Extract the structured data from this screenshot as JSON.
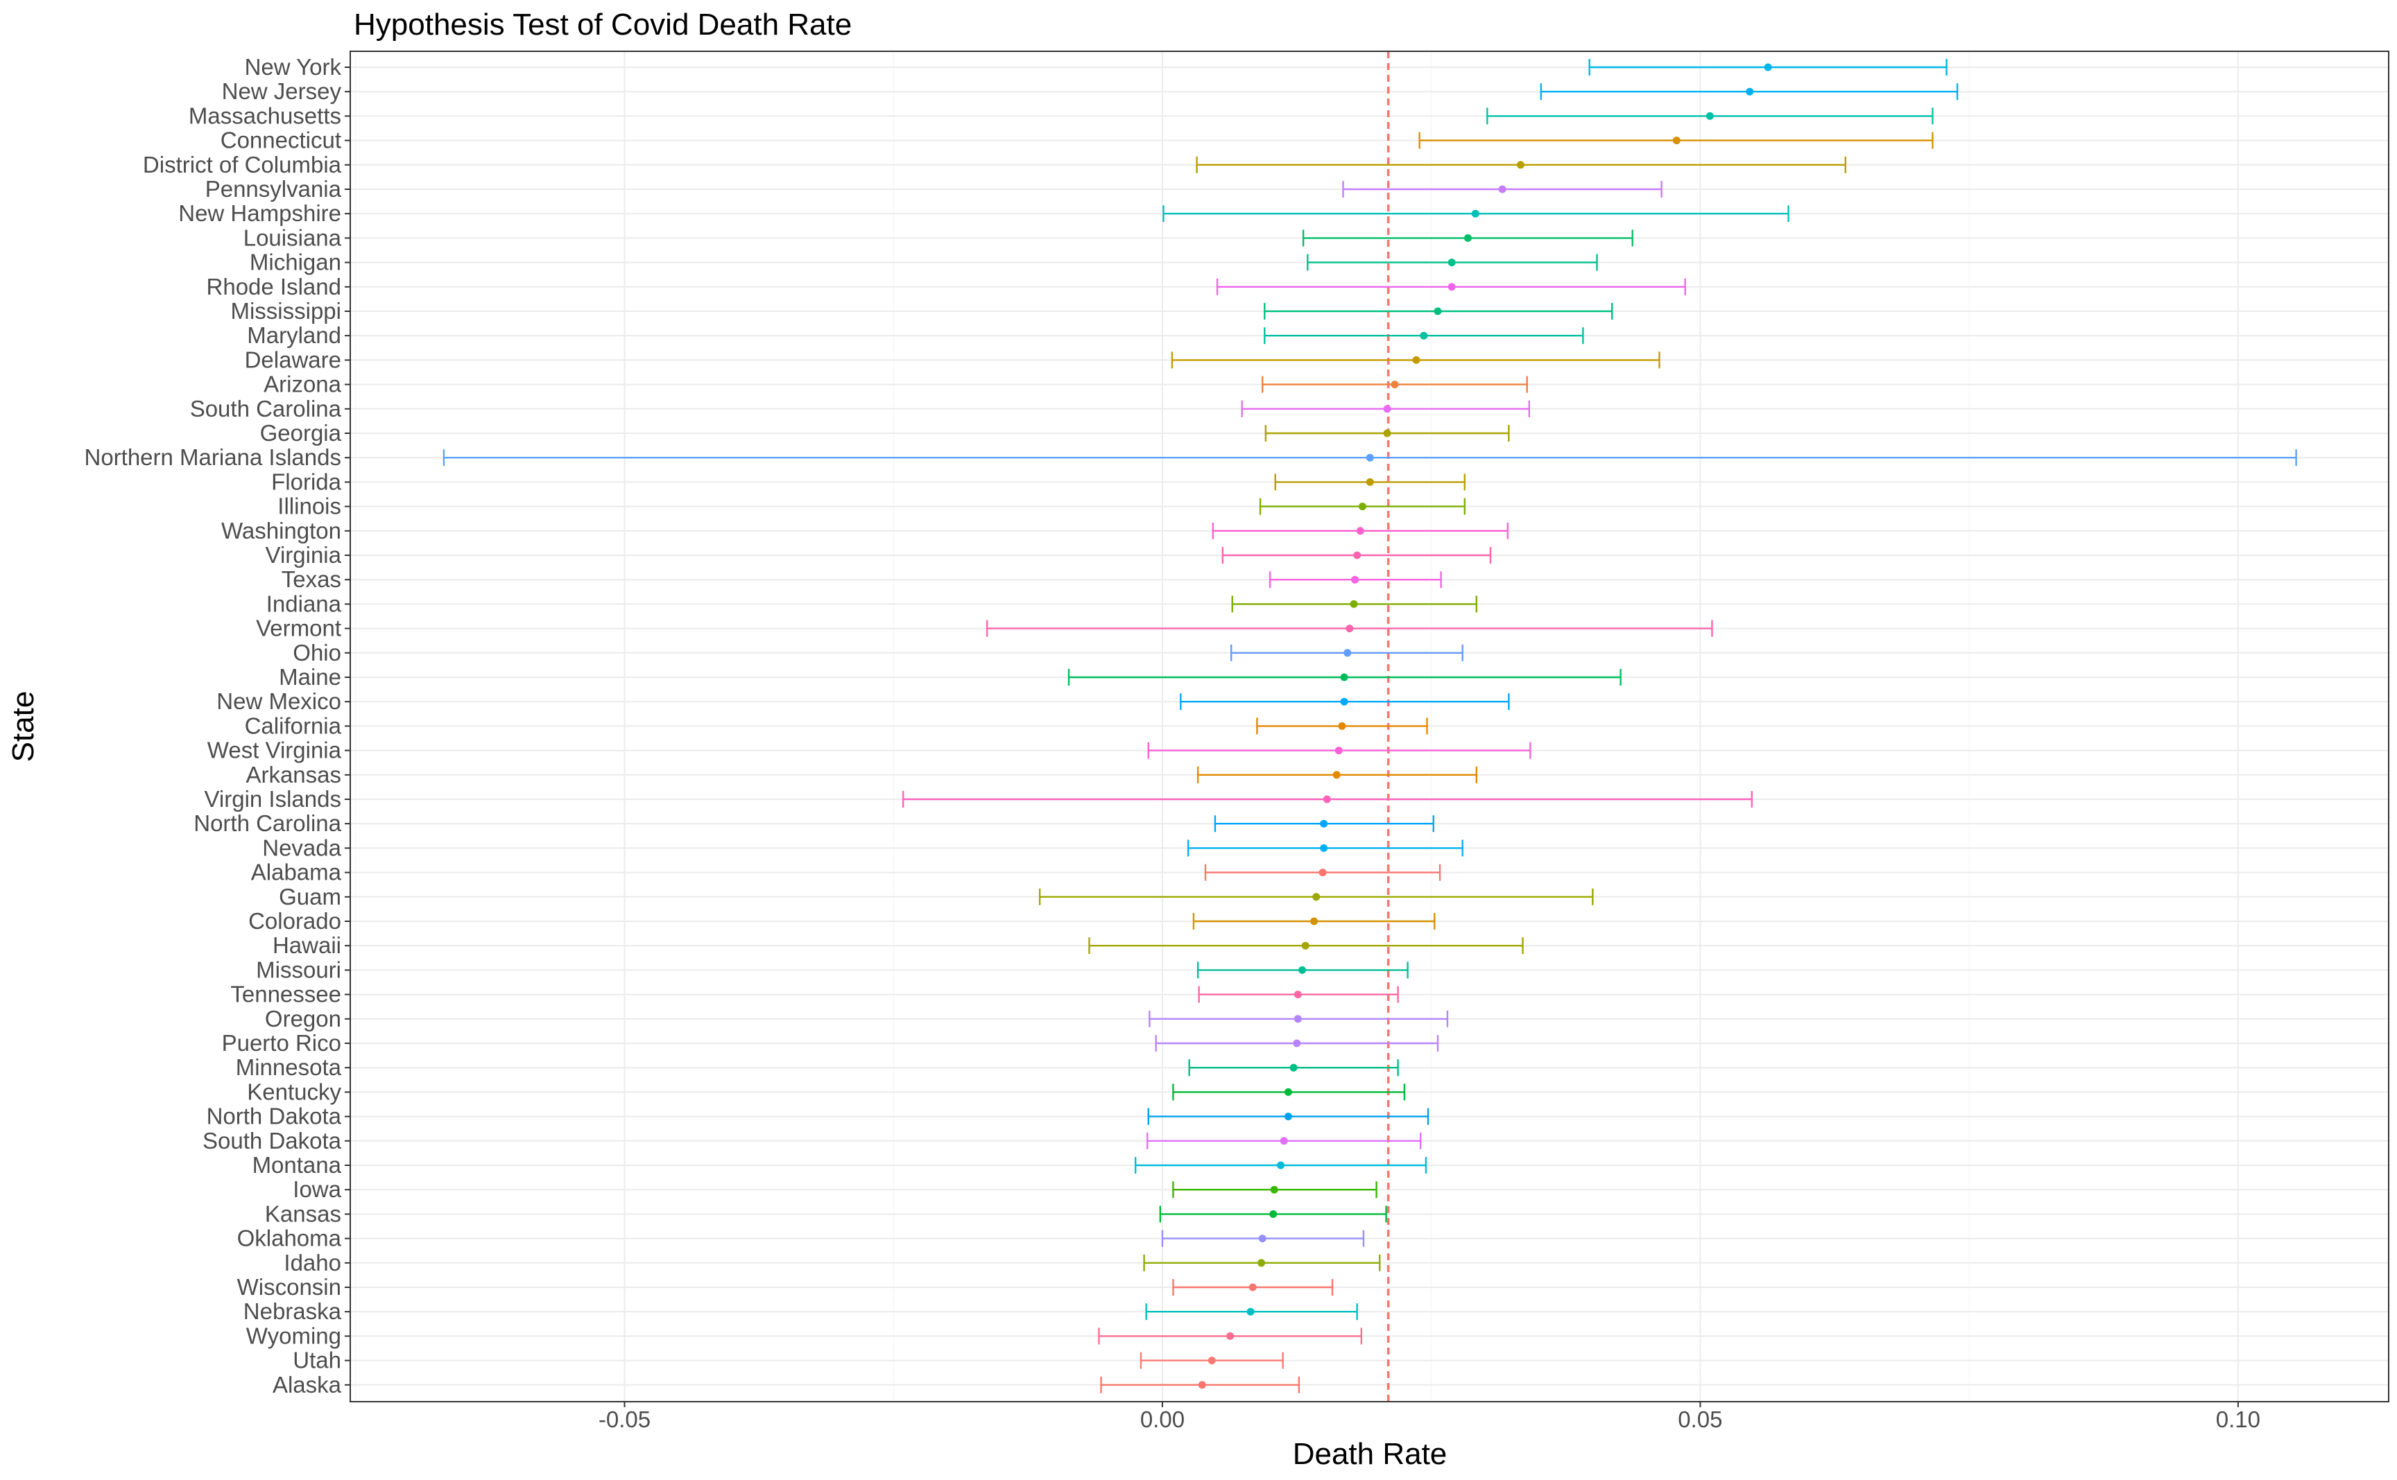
{
  "chart_data": {
    "type": "scatter",
    "title": "Hypothesis Test of Covid Death Rate",
    "xlabel": "Death Rate",
    "ylabel": "State",
    "xlim": [
      -0.0755,
      0.114
    ],
    "x_ticks": [
      -0.05,
      0.0,
      0.05,
      0.1
    ],
    "x_tick_labels": [
      "-0.05",
      "0.00",
      "0.05",
      "0.10"
    ],
    "reference_line": {
      "x": 0.021,
      "style": "dashed",
      "color": "#f8766d"
    },
    "grid": true,
    "legend": "none",
    "series": [
      {
        "state": "New York",
        "estimate": 0.0563,
        "lower": 0.0397,
        "upper": 0.0729,
        "color": "#00b7e8"
      },
      {
        "state": "New Jersey",
        "estimate": 0.0546,
        "lower": 0.0352,
        "upper": 0.0739,
        "color": "#00b2f3"
      },
      {
        "state": "Massachusetts",
        "estimate": 0.0509,
        "lower": 0.0302,
        "upper": 0.0716,
        "color": "#00c1a7"
      },
      {
        "state": "Connecticut",
        "estimate": 0.0478,
        "lower": 0.0239,
        "upper": 0.0716,
        "color": "#d89000"
      },
      {
        "state": "District of Columbia",
        "estimate": 0.0333,
        "lower": 0.0032,
        "upper": 0.0635,
        "color": "#b79f00"
      },
      {
        "state": "Pennsylvania",
        "estimate": 0.0316,
        "lower": 0.0168,
        "upper": 0.0464,
        "color": "#c77cff"
      },
      {
        "state": "New Hampshire",
        "estimate": 0.0291,
        "lower": 0.0001,
        "upper": 0.0582,
        "color": "#00c0b8"
      },
      {
        "state": "Louisiana",
        "estimate": 0.0284,
        "lower": 0.0131,
        "upper": 0.0437,
        "color": "#00be67"
      },
      {
        "state": "Michigan",
        "estimate": 0.0269,
        "lower": 0.0135,
        "upper": 0.0404,
        "color": "#00c08b"
      },
      {
        "state": "Rhode Island",
        "estimate": 0.0269,
        "lower": 0.0051,
        "upper": 0.0486,
        "color": "#f066ea"
      },
      {
        "state": "Mississippi",
        "estimate": 0.0256,
        "lower": 0.0095,
        "upper": 0.0418,
        "color": "#00bf7d"
      },
      {
        "state": "Maryland",
        "estimate": 0.0243,
        "lower": 0.0095,
        "upper": 0.0391,
        "color": "#00c0a0"
      },
      {
        "state": "Delaware",
        "estimate": 0.0236,
        "lower": 0.0009,
        "upper": 0.0462,
        "color": "#c49a00"
      },
      {
        "state": "Arizona",
        "estimate": 0.0216,
        "lower": 0.0093,
        "upper": 0.0339,
        "color": "#ed813e"
      },
      {
        "state": "South Carolina",
        "estimate": 0.0209,
        "lower": 0.0074,
        "upper": 0.0341,
        "color": "#e76bf3"
      },
      {
        "state": "Georgia",
        "estimate": 0.0209,
        "lower": 0.0096,
        "upper": 0.0322,
        "color": "#aba300"
      },
      {
        "state": "Northern Mariana Islands",
        "estimate": 0.0193,
        "lower": -0.0668,
        "upper": 0.1054,
        "color": "#5da1ff"
      },
      {
        "state": "Florida",
        "estimate": 0.0193,
        "lower": 0.0105,
        "upper": 0.0281,
        "color": "#bb9d00"
      },
      {
        "state": "Illinois",
        "estimate": 0.0186,
        "lower": 0.0091,
        "upper": 0.0281,
        "color": "#7cae00"
      },
      {
        "state": "Washington",
        "estimate": 0.0184,
        "lower": 0.0047,
        "upper": 0.0321,
        "color": "#fe61cf"
      },
      {
        "state": "Virginia",
        "estimate": 0.0181,
        "lower": 0.0056,
        "upper": 0.0305,
        "color": "#ff64b0"
      },
      {
        "state": "Texas",
        "estimate": 0.0179,
        "lower": 0.01,
        "upper": 0.0259,
        "color": "#f564e3"
      },
      {
        "state": "Indiana",
        "estimate": 0.0178,
        "lower": 0.0065,
        "upper": 0.0292,
        "color": "#7cae00"
      },
      {
        "state": "Vermont",
        "estimate": 0.0174,
        "lower": -0.0163,
        "upper": 0.0511,
        "color": "#ff65ac"
      },
      {
        "state": "Ohio",
        "estimate": 0.0172,
        "lower": 0.0064,
        "upper": 0.0279,
        "color": "#619cff"
      },
      {
        "state": "Maine",
        "estimate": 0.0169,
        "lower": -0.0087,
        "upper": 0.0426,
        "color": "#00bd5c"
      },
      {
        "state": "New Mexico",
        "estimate": 0.0169,
        "lower": 0.0017,
        "upper": 0.0322,
        "color": "#00a9ff"
      },
      {
        "state": "California",
        "estimate": 0.0167,
        "lower": 0.0088,
        "upper": 0.0246,
        "color": "#e58700"
      },
      {
        "state": "West Virginia",
        "estimate": 0.0164,
        "lower": -0.0013,
        "upper": 0.0342,
        "color": "#fb61d7"
      },
      {
        "state": "Arkansas",
        "estimate": 0.0162,
        "lower": 0.0033,
        "upper": 0.0292,
        "color": "#e38900"
      },
      {
        "state": "Virgin Islands",
        "estimate": 0.0153,
        "lower": -0.0241,
        "upper": 0.0548,
        "color": "#ff62bc"
      },
      {
        "state": "North Carolina",
        "estimate": 0.015,
        "lower": 0.0049,
        "upper": 0.0252,
        "color": "#00a5ff"
      },
      {
        "state": "Nevada",
        "estimate": 0.015,
        "lower": 0.0024,
        "upper": 0.0279,
        "color": "#00b0f6"
      },
      {
        "state": "Alabama",
        "estimate": 0.0149,
        "lower": 0.004,
        "upper": 0.0258,
        "color": "#f8766d"
      },
      {
        "state": "Guam",
        "estimate": 0.0143,
        "lower": -0.0114,
        "upper": 0.04,
        "color": "#9da700"
      },
      {
        "state": "Colorado",
        "estimate": 0.0141,
        "lower": 0.0029,
        "upper": 0.0253,
        "color": "#d39200"
      },
      {
        "state": "Hawaii",
        "estimate": 0.0133,
        "lower": -0.0068,
        "upper": 0.0335,
        "color": "#a3a500"
      },
      {
        "state": "Missouri",
        "estimate": 0.013,
        "lower": 0.0033,
        "upper": 0.0228,
        "color": "#00bf96"
      },
      {
        "state": "Tennessee",
        "estimate": 0.0126,
        "lower": 0.0034,
        "upper": 0.0219,
        "color": "#ff67a4"
      },
      {
        "state": "Oregon",
        "estimate": 0.0126,
        "lower": -0.0012,
        "upper": 0.0265,
        "color": "#b385ff"
      },
      {
        "state": "Puerto Rico",
        "estimate": 0.0125,
        "lower": -0.0006,
        "upper": 0.0256,
        "color": "#b983ff"
      },
      {
        "state": "Minnesota",
        "estimate": 0.0122,
        "lower": 0.0025,
        "upper": 0.0219,
        "color": "#00bf84"
      },
      {
        "state": "Kentucky",
        "estimate": 0.0117,
        "lower": 0.001,
        "upper": 0.0225,
        "color": "#00ba38"
      },
      {
        "state": "North Dakota",
        "estimate": 0.0117,
        "lower": -0.0013,
        "upper": 0.0247,
        "color": "#00a0f0"
      },
      {
        "state": "South Dakota",
        "estimate": 0.0113,
        "lower": -0.0014,
        "upper": 0.024,
        "color": "#df70f8"
      },
      {
        "state": "Montana",
        "estimate": 0.011,
        "lower": -0.0025,
        "upper": 0.0245,
        "color": "#00bcd8"
      },
      {
        "state": "Iowa",
        "estimate": 0.0104,
        "lower": 0.001,
        "upper": 0.0199,
        "color": "#39b600"
      },
      {
        "state": "Kansas",
        "estimate": 0.0103,
        "lower": -0.0002,
        "upper": 0.0208,
        "color": "#00ba38"
      },
      {
        "state": "Oklahoma",
        "estimate": 0.0093,
        "lower": 0.0,
        "upper": 0.0187,
        "color": "#9590ff"
      },
      {
        "state": "Idaho",
        "estimate": 0.0092,
        "lower": -0.0017,
        "upper": 0.0202,
        "color": "#8ead00"
      },
      {
        "state": "Wisconsin",
        "estimate": 0.0084,
        "lower": 0.001,
        "upper": 0.0158,
        "color": "#f8766d"
      },
      {
        "state": "Nebraska",
        "estimate": 0.0082,
        "lower": -0.0015,
        "upper": 0.0181,
        "color": "#00bfc4"
      },
      {
        "state": "Wyoming",
        "estimate": 0.0063,
        "lower": -0.0059,
        "upper": 0.0185,
        "color": "#ff6c91"
      },
      {
        "state": "Utah",
        "estimate": 0.0046,
        "lower": -0.002,
        "upper": 0.0112,
        "color": "#f77b72"
      },
      {
        "state": "Alaska",
        "estimate": 0.0037,
        "lower": -0.0057,
        "upper": 0.0127,
        "color": "#f8766d"
      }
    ]
  }
}
